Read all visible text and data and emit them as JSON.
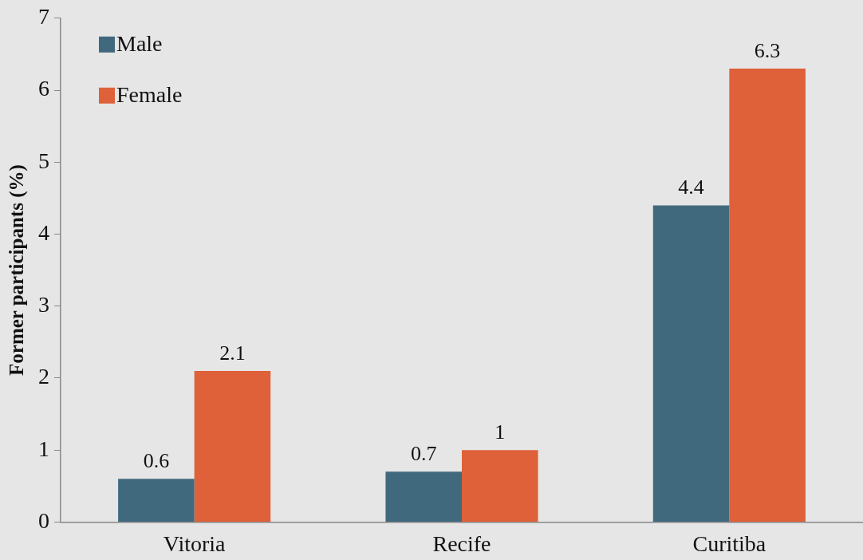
{
  "chart_data": {
    "type": "bar",
    "ylabel": "Former participants (%)",
    "categories": [
      "Vitoria",
      "Recife",
      "Curitiba"
    ],
    "series": [
      {
        "name": "Male",
        "color": "#41697d",
        "values": [
          0.6,
          0.7,
          4.4
        ]
      },
      {
        "name": "Female",
        "color": "#de613a",
        "values": [
          2.1,
          1,
          6.3
        ]
      }
    ],
    "ylim": [
      0,
      7
    ],
    "yticks": [
      0,
      1,
      2,
      3,
      4,
      5,
      6,
      7
    ],
    "grid": false,
    "legend": "top left",
    "data_labels": true
  }
}
